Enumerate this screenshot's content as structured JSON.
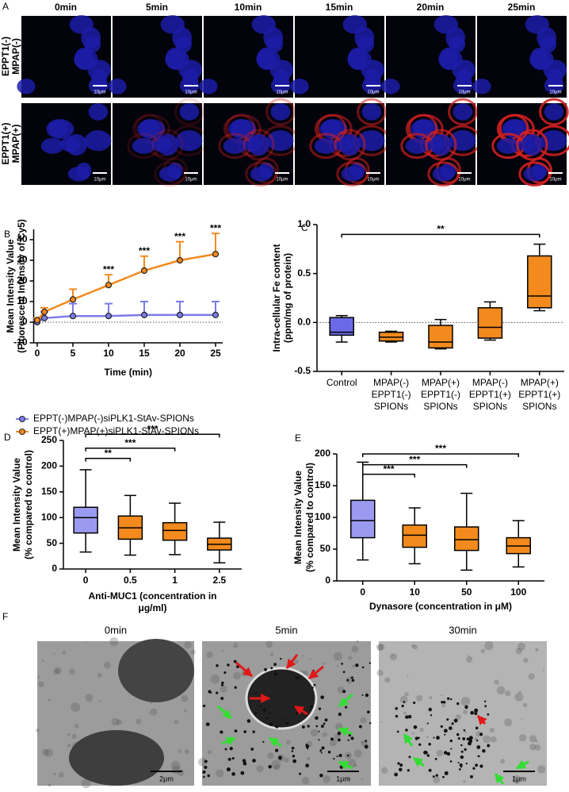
{
  "panel_a": {
    "label": "A",
    "columns": [
      "0min",
      "5min",
      "10min",
      "15min",
      "20min",
      "25min"
    ],
    "rows": [
      [
        "EPPT1(-)",
        "MPAP(-)"
      ],
      [
        "EPPT1(+)",
        "MPAP(+)"
      ]
    ],
    "scale_bar": "10μm"
  },
  "chart_data": [
    {
      "type": "line",
      "label": "B",
      "xlabel": "Time (min)",
      "ylabel": [
        "Mean Intensity Value",
        "(Fluorescent Intensity of Cy5)"
      ],
      "x": [
        0,
        1,
        5,
        10,
        15,
        20,
        25
      ],
      "xlim": [
        -0.5,
        26
      ],
      "xticks": [
        0,
        5,
        10,
        15,
        20,
        25
      ],
      "ylim": [
        -10,
        45
      ],
      "yticks": [
        -10,
        0,
        10,
        20,
        30,
        40
      ],
      "zero_line": true,
      "series": [
        {
          "name": "EPPT(-)MPAP(-)siPLK1-StAv-SPIONs",
          "color": "#7b7bea",
          "values": [
            0,
            2,
            3,
            3,
            3.5,
            3.5,
            3.5
          ],
          "errors": [
            1,
            3,
            6,
            6,
            6.5,
            6.5,
            6.5
          ]
        },
        {
          "name": "EPPT(+)MPAP(+)siPLK1-StAv-SPIONs",
          "color": "#f28a1e",
          "values": [
            1,
            5,
            11,
            18,
            25,
            30,
            33
          ],
          "errors": [
            1,
            2,
            5,
            5,
            7,
            9,
            10
          ]
        }
      ],
      "annotations": [
        {
          "x": 10,
          "label": "***"
        },
        {
          "x": 15,
          "label": "***"
        },
        {
          "x": 20,
          "label": "***"
        },
        {
          "x": 25,
          "label": "***"
        }
      ]
    },
    {
      "type": "box",
      "label": "C",
      "ylabel": [
        "Intra-cellular Fe content",
        "(ppm/mg of protein)"
      ],
      "categories": [
        [
          "Control"
        ],
        [
          "MPAP(-)",
          "EPPT1(-)",
          "SPIONs"
        ],
        [
          "MPAP(+)",
          "EPPT1(-)",
          "SPIONs"
        ],
        [
          "MPAP(-)",
          "EPPT1(+)",
          "SPIONs"
        ],
        [
          "MPAP(+)",
          "EPPT1(+)",
          "SPIONs"
        ]
      ],
      "boxes": [
        {
          "low": -0.2,
          "q1": -0.13,
          "median": -0.1,
          "q3": 0.05,
          "high": 0.07,
          "color": "#6a6ae8"
        },
        {
          "low": -0.2,
          "q1": -0.19,
          "median": -0.15,
          "q3": -0.1,
          "high": -0.09,
          "color": "#f28a1e"
        },
        {
          "low": -0.27,
          "q1": -0.26,
          "median": -0.2,
          "q3": -0.03,
          "high": 0.03,
          "color": "#f28a1e"
        },
        {
          "low": -0.18,
          "q1": -0.16,
          "median": -0.05,
          "q3": 0.15,
          "high": 0.21,
          "color": "#f28a1e"
        },
        {
          "low": 0.12,
          "q1": 0.15,
          "median": 0.27,
          "q3": 0.68,
          "high": 0.8,
          "color": "#f28a1e"
        }
      ],
      "ylim": [
        -0.5,
        1.0
      ],
      "yticks": [
        {
          "value": -0.5,
          "label": "-0.5"
        },
        {
          "value": 0,
          "label": "0.0"
        },
        {
          "value": 0.5,
          "label": "0.5"
        },
        {
          "value": 1.0,
          "label": "1.0"
        }
      ],
      "zero_line": true,
      "brackets": [
        {
          "from": 0,
          "to": 4,
          "y": 0.9,
          "label": "**"
        }
      ]
    },
    {
      "type": "box",
      "label": "D",
      "ylabel": [
        "Mean Intensity Value",
        "(% compared to control)"
      ],
      "xlabel": [
        "Anti-MUC1 (concentration in",
        "μg/ml)"
      ],
      "categories": [
        [
          "0"
        ],
        [
          "0.5"
        ],
        [
          "1"
        ],
        [
          "2.5"
        ]
      ],
      "boxes": [
        {
          "low": 33,
          "q1": 70,
          "median": 100,
          "q3": 120,
          "high": 193,
          "color": "#9a9af0"
        },
        {
          "low": 27,
          "q1": 58,
          "median": 80,
          "q3": 103,
          "high": 143,
          "color": "#f28a1e"
        },
        {
          "low": 28,
          "q1": 56,
          "median": 75,
          "q3": 90,
          "high": 128,
          "color": "#f28a1e"
        },
        {
          "low": 12,
          "q1": 37,
          "median": 48,
          "q3": 60,
          "high": 91,
          "color": "#f28a1e"
        }
      ],
      "ylim": [
        0,
        250
      ],
      "yticks": [
        0,
        50,
        100,
        150,
        200,
        250
      ],
      "brackets": [
        {
          "from": 0,
          "to": 1,
          "y": 215,
          "label": "**"
        },
        {
          "from": 0,
          "to": 2,
          "y": 235,
          "label": "***"
        },
        {
          "from": 0,
          "to": 3,
          "y": 262,
          "label": "***"
        }
      ]
    },
    {
      "type": "box",
      "label": "E",
      "ylabel": [
        "Mean Intensity Value",
        "(% compared to control)"
      ],
      "xlabel": [
        "Dynasore (concentration in μM)"
      ],
      "categories": [
        [
          "0"
        ],
        [
          "10"
        ],
        [
          "50"
        ],
        [
          "100"
        ]
      ],
      "boxes": [
        {
          "low": 33,
          "q1": 68,
          "median": 95,
          "q3": 127,
          "high": 187,
          "color": "#9a9af0"
        },
        {
          "low": 27,
          "q1": 53,
          "median": 72,
          "q3": 88,
          "high": 115,
          "color": "#f28a1e"
        },
        {
          "low": 17,
          "q1": 48,
          "median": 65,
          "q3": 85,
          "high": 138,
          "color": "#f28a1e"
        },
        {
          "low": 22,
          "q1": 43,
          "median": 55,
          "q3": 68,
          "high": 95,
          "color": "#f28a1e"
        }
      ],
      "ylim": [
        0,
        200
      ],
      "yticks": [
        0,
        50,
        100,
        150,
        200
      ],
      "brackets": [
        {
          "from": 0,
          "to": 1,
          "y": 168,
          "label": "***"
        },
        {
          "from": 0,
          "to": 2,
          "y": 183,
          "label": "***"
        },
        {
          "from": 0,
          "to": 3,
          "y": 200,
          "label": "***"
        }
      ]
    }
  ],
  "panel_f": {
    "label": "F",
    "columns": [
      "0min",
      "5min",
      "30min"
    ],
    "scale_bars": [
      "2μm",
      "1μm",
      "1μm"
    ]
  }
}
